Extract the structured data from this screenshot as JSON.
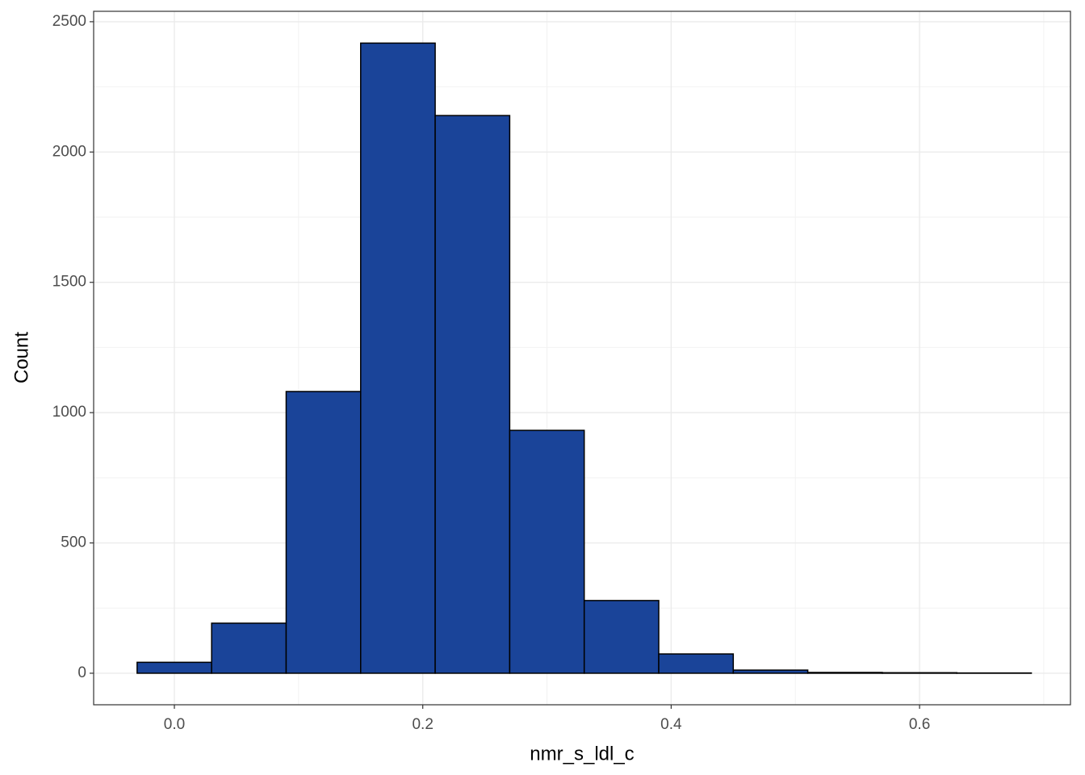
{
  "chart_data": {
    "type": "histogram",
    "x_label": "nmr_s_ldl_c",
    "y_label": "Count",
    "bins": [
      -0.03,
      0.03,
      0.09,
      0.15,
      0.21,
      0.27,
      0.33,
      0.39,
      0.45,
      0.51,
      0.57,
      0.63,
      0.69
    ],
    "values": [
      42,
      192,
      1081,
      2418,
      2140,
      932,
      279,
      74,
      12,
      3,
      2,
      1
    ],
    "color": "#1a4499",
    "edge_color": "#000000",
    "xlim": [
      -0.065,
      0.7215
    ],
    "ylim": [
      -121,
      2540
    ],
    "xticks": [
      {
        "value": 0,
        "label": "0.0"
      },
      0.2,
      0.4,
      0.6
    ],
    "yticks": [
      0,
      500,
      1000,
      1500,
      2000,
      2500
    ],
    "grid": true,
    "minor_grid": true
  }
}
